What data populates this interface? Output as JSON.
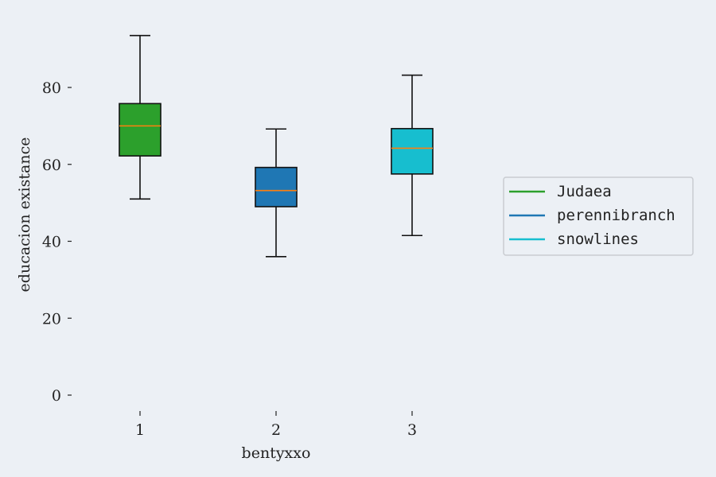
{
  "chart_data": {
    "type": "box",
    "xlabel": "bentyxxo",
    "ylabel": "educacion existance",
    "ylim": [
      -5,
      98
    ],
    "yticks": [
      0,
      20,
      40,
      60,
      80
    ],
    "categories": [
      "1",
      "2",
      "3"
    ],
    "series": [
      {
        "name": "Judaea",
        "color": "#2ca02c",
        "whisker_low": 51,
        "q1": 62.2,
        "median": 70,
        "q3": 75.8,
        "whisker_high": 93.5
      },
      {
        "name": "perennibranch",
        "color": "#1f77b4",
        "whisker_low": 36,
        "q1": 49,
        "median": 53.2,
        "q3": 59.2,
        "whisker_high": 69.2
      },
      {
        "name": "snowlines",
        "color": "#17becf",
        "whisker_low": 41.5,
        "q1": 57.5,
        "median": 64.2,
        "q3": 69.3,
        "whisker_high": 83.2
      }
    ],
    "median_color": "#ff7f0e",
    "grid": false,
    "legend_position": "center-right"
  }
}
